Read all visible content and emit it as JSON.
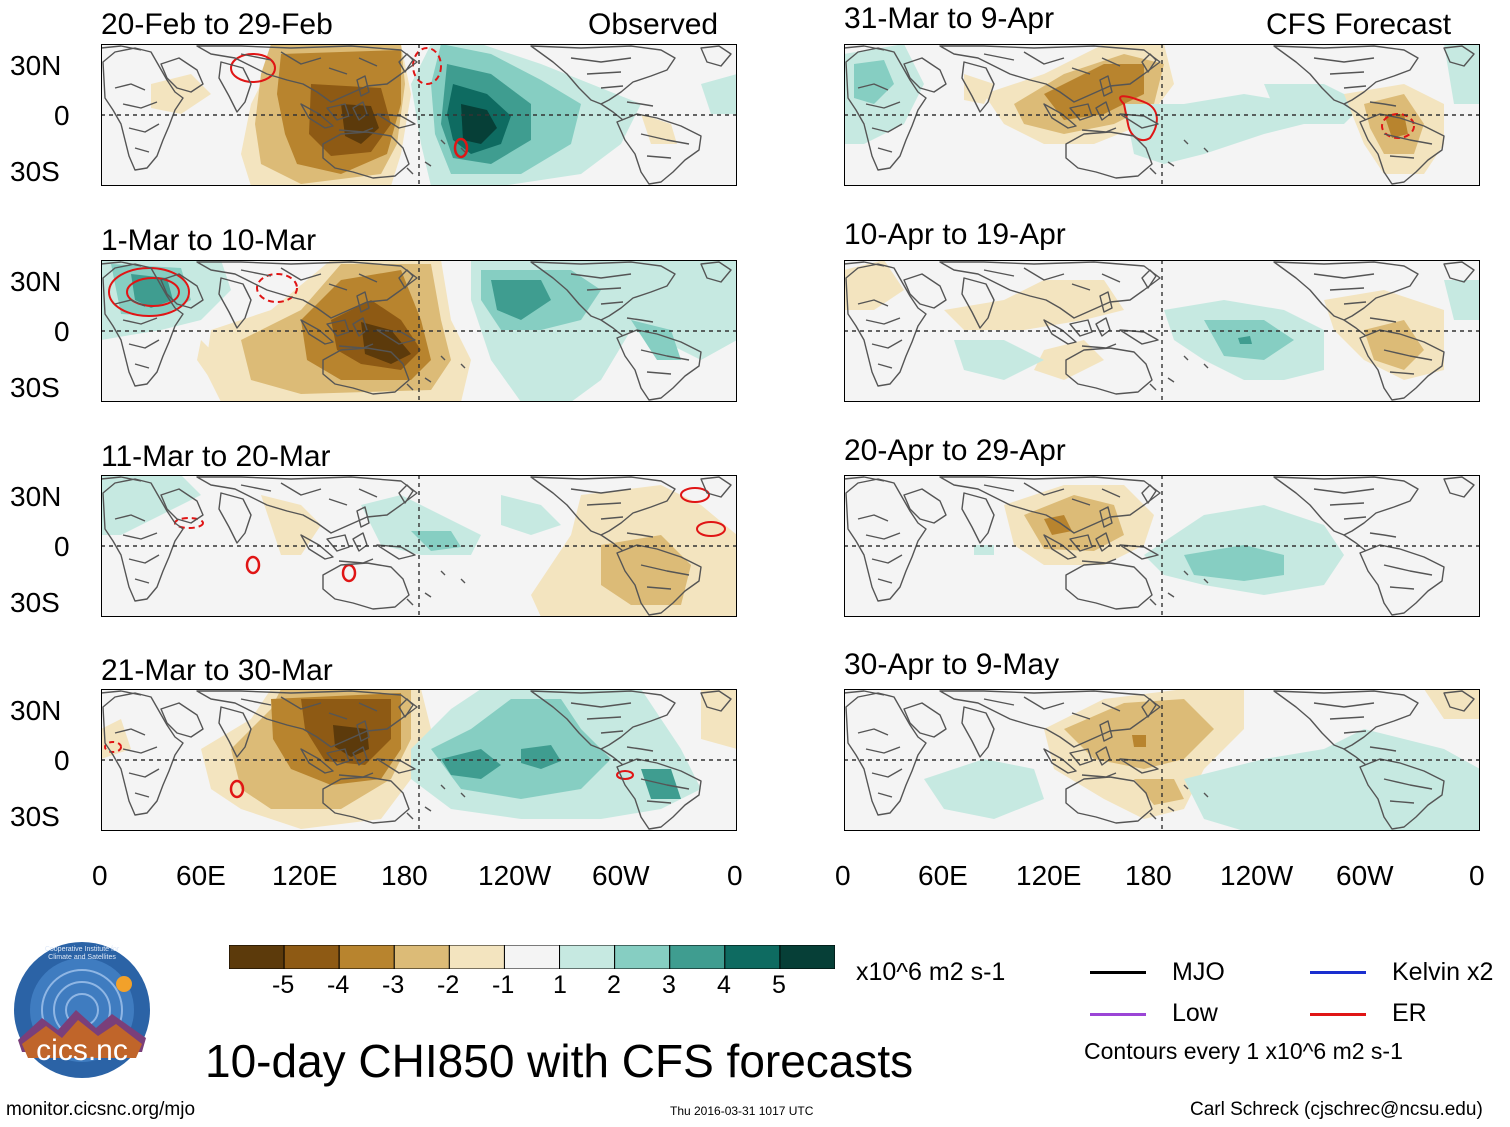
{
  "figure": {
    "title": "10-day CHI850 with CFS forecasts",
    "observed_label": "Observed",
    "forecast_label": "CFS Forecast",
    "website": "monitor.cicsnc.org/mjo",
    "timestamp": "Thu 2016-03-31 1017 UTC",
    "author": "Carl Schreck (cjschrec@ncsu.edu)",
    "logo_text": "cics.nc",
    "logo_ring_text": "Cooperative Institute for Climate and Satellites"
  },
  "panels_left": [
    {
      "title": "20-Feb to 29-Feb"
    },
    {
      "title": "1-Mar to 10-Mar"
    },
    {
      "title": "11-Mar to 20-Mar"
    },
    {
      "title": "21-Mar to 30-Mar"
    }
  ],
  "panels_right": [
    {
      "title": "31-Mar to 9-Apr"
    },
    {
      "title": "10-Apr to 19-Apr"
    },
    {
      "title": "20-Apr to 29-Apr"
    },
    {
      "title": "30-Apr to 9-May"
    }
  ],
  "axes": {
    "y_ticks": [
      "30N",
      "0",
      "30S"
    ],
    "x_ticks": [
      "0",
      "60E",
      "120E",
      "180",
      "120W",
      "60W",
      "0"
    ]
  },
  "colorbar": {
    "labels": [
      "-5",
      "-4",
      "-3",
      "-2",
      "-1",
      "1",
      "2",
      "3",
      "4",
      "5"
    ],
    "units": "x10^6 m2 s-1",
    "colors": [
      "#5c3a0b",
      "#8e5a14",
      "#b8842e",
      "#dcbb77",
      "#f3e4bf",
      "#f4f4f4",
      "#c6e9e1",
      "#86cec2",
      "#3f9d90",
      "#0e6b61",
      "#063f37"
    ]
  },
  "legend": {
    "items": [
      {
        "label": "MJO",
        "color": "#000000"
      },
      {
        "label": "Kelvin x2",
        "color": "#1a2fcf"
      },
      {
        "label": "Low",
        "color": "#9b45d6"
      },
      {
        "label": "ER",
        "color": "#e01515"
      }
    ],
    "note": "Contours every 1 x10^6 m2 s-1"
  }
}
